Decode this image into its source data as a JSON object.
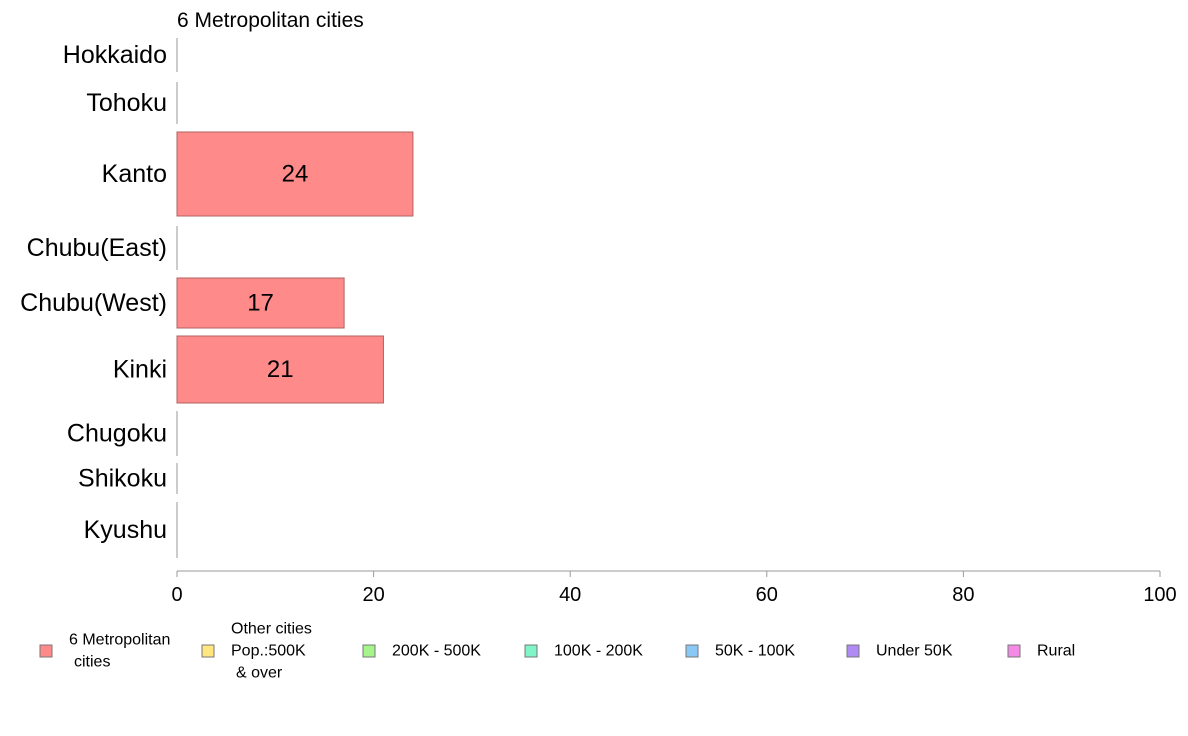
{
  "chart_data": {
    "type": "bar",
    "orientation": "horizontal",
    "title": "6 Metropolitan cities",
    "categories": [
      "Hokkaido",
      "Tohoku",
      "Kanto",
      "Chubu(East)",
      "Chubu(West)",
      "Kinki",
      "Chugoku",
      "Shikoku",
      "Kyushu"
    ],
    "values": [
      0,
      0,
      24,
      0,
      17,
      21,
      0,
      0,
      0
    ],
    "bar_labels": [
      "",
      "",
      "24",
      "",
      "17",
      "21",
      "",
      "",
      ""
    ],
    "xlim": [
      0,
      100
    ],
    "xticks": [
      "0",
      "20",
      "40",
      "60",
      "80",
      "100"
    ],
    "bar_color": "#ff8a8a",
    "bar_border_color": "#b06060",
    "legend_position": "bottom",
    "legend": [
      {
        "lines": [
          "6 Metropolitan",
          "cities"
        ],
        "color": "#ff8a8a"
      },
      {
        "lines": [
          "Other cities",
          "Pop.:500K",
          "& over"
        ],
        "color": "#ffe680"
      },
      {
        "lines": [
          "200K - 500K"
        ],
        "color": "#a6f58a"
      },
      {
        "lines": [
          "100K - 200K"
        ],
        "color": "#80f5c8"
      },
      {
        "lines": [
          "50K - 100K"
        ],
        "color": "#8ac8f5"
      },
      {
        "lines": [
          "Under 50K"
        ],
        "color": "#b08af5"
      },
      {
        "lines": [
          "Rural"
        ],
        "color": "#f58ae6"
      }
    ]
  }
}
